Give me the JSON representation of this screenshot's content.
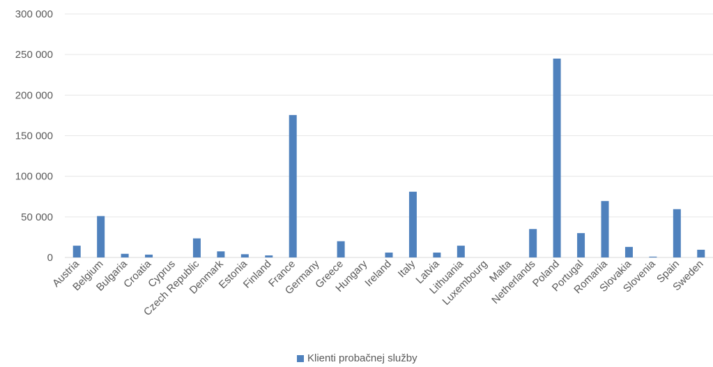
{
  "chart_data": {
    "type": "bar",
    "categories": [
      "Austria",
      "Belgium",
      "Bulgaria",
      "Croatia",
      "Cyprus",
      "Czech Republic",
      "Denmark",
      "Estonia",
      "Finland",
      "France",
      "Germany",
      "Greece",
      "Hungary",
      "Ireland",
      "Italy",
      "Latvia",
      "Lithuania",
      "Luxembourg",
      "Malta",
      "Netherlands",
      "Poland",
      "Portugal",
      "Romania",
      "Slovakia",
      "Slovenia",
      "Spain",
      "Sweden"
    ],
    "series": [
      {
        "name": "Klienti probačnej služby",
        "color": "#4f81bd",
        "values": [
          14500,
          51000,
          4500,
          3500,
          0,
          23500,
          7500,
          4000,
          2500,
          175500,
          0,
          20000,
          0,
          6000,
          81000,
          6000,
          14500,
          0,
          0,
          35000,
          245000,
          30000,
          69500,
          13000,
          1000,
          59500,
          9500
        ]
      }
    ],
    "yticks": [
      "0",
      "50 000",
      "100 000",
      "150 000",
      "200 000",
      "250 000",
      "300 000"
    ],
    "ylim": [
      0,
      300000
    ],
    "grid": true,
    "legend_position": "bottom"
  }
}
